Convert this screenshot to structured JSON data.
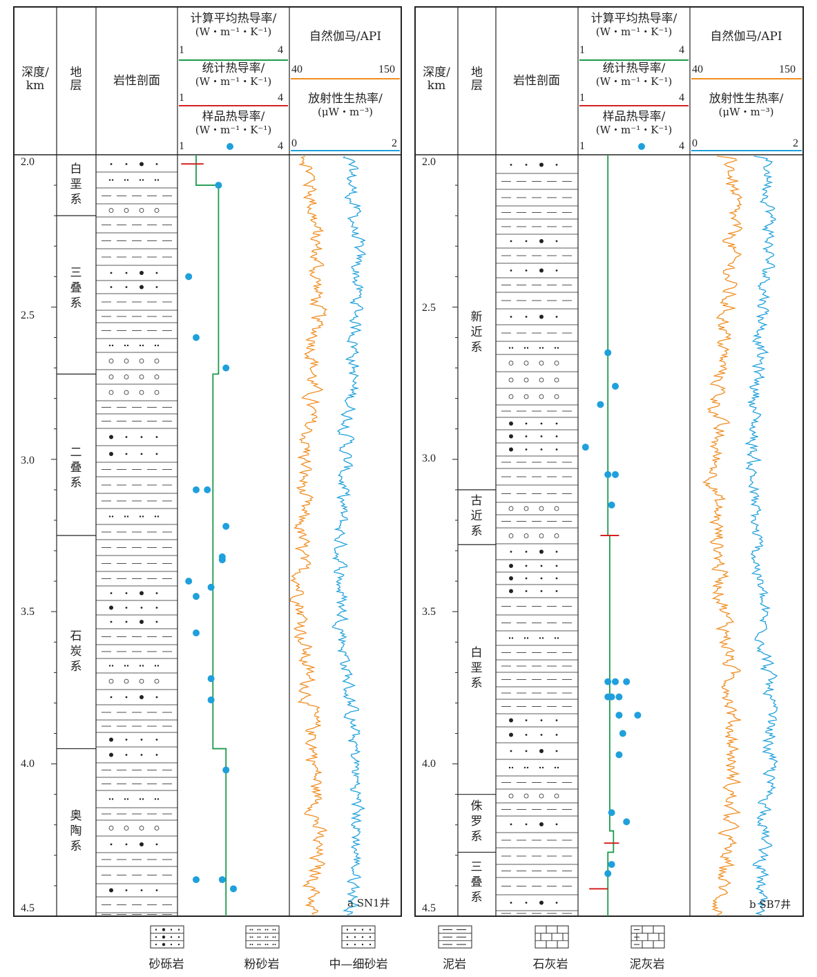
{
  "headers": {
    "depth": "深度/",
    "depth_unit": "km",
    "strata": "地\n层",
    "lithology": "岩性剖面",
    "calc_k": "计算平均热导率/",
    "k_unit": "(W・m⁻¹・K⁻¹)",
    "stat_k": "统计热导率/",
    "sample_k": "样品热导率/",
    "k_min": "1",
    "k_max": "4",
    "gamma": "自然伽马/API",
    "gamma_min": "40",
    "gamma_max": "150",
    "heat": "放射性生热率/",
    "heat_unit": "(μW・m⁻³)",
    "heat_min": "0",
    "heat_max": "2"
  },
  "depth_ticks": [
    "2.0",
    "2.5",
    "3.0",
    "3.5",
    "4.0",
    "4.5"
  ],
  "colors": {
    "calc": "#1a9a4a",
    "stat": "#d42020",
    "sample": "#1fa0dc",
    "gamma": "#f08c1e",
    "heat": "#1fa0dc",
    "frame": "#222222"
  },
  "wells": [
    {
      "name": "a SN1井",
      "strata": [
        {
          "name": "白垩系",
          "top": 2.0,
          "bottom": 2.2
        },
        {
          "name": "三叠系",
          "top": 2.2,
          "bottom": 2.72
        },
        {
          "name": "二叠系",
          "top": 2.72,
          "bottom": 3.25
        },
        {
          "name": "石炭系",
          "top": 3.25,
          "bottom": 3.95
        },
        {
          "name": "奥陶系",
          "top": 3.95,
          "bottom": 4.5
        }
      ],
      "calc_k_steps": [
        [
          2.0,
          2.1,
          1.5
        ],
        [
          2.1,
          2.72,
          2.1
        ],
        [
          2.72,
          3.95,
          1.95
        ],
        [
          3.95,
          4.5,
          2.3
        ]
      ],
      "stat_k": [
        {
          "depth": 2.03,
          "from": 1.1,
          "to": 1.7
        }
      ],
      "sample_k": [
        [
          2.1,
          2.1
        ],
        [
          2.4,
          1.3
        ],
        [
          2.6,
          1.5
        ],
        [
          2.7,
          2.3
        ],
        [
          3.1,
          1.5
        ],
        [
          3.1,
          1.8
        ],
        [
          3.22,
          2.3
        ],
        [
          3.32,
          2.2
        ],
        [
          3.33,
          2.2
        ],
        [
          3.42,
          1.9
        ],
        [
          3.4,
          1.3
        ],
        [
          3.45,
          1.5
        ],
        [
          3.57,
          1.5
        ],
        [
          3.72,
          1.9
        ],
        [
          3.79,
          1.9
        ],
        [
          4.02,
          2.3
        ],
        [
          4.38,
          1.5
        ],
        [
          4.38,
          2.2
        ],
        [
          4.41,
          2.5
        ]
      ]
    },
    {
      "name": "b SB7井",
      "strata": [
        {
          "name": "新近系",
          "top": 2.0,
          "bottom": 3.1
        },
        {
          "name": "古近系",
          "top": 3.1,
          "bottom": 3.28
        },
        {
          "name": "白垩系",
          "top": 3.28,
          "bottom": 4.1
        },
        {
          "name": "侏罗系",
          "top": 4.1,
          "bottom": 4.29
        },
        {
          "name": "三叠系",
          "top": 4.29,
          "bottom": 4.5
        }
      ],
      "calc_k_steps": [
        [
          2.0,
          3.25,
          1.8
        ],
        [
          3.25,
          4.22,
          1.85
        ],
        [
          4.22,
          4.29,
          1.95
        ],
        [
          4.29,
          4.5,
          1.8
        ]
      ],
      "stat_k": [
        {
          "depth": 3.25,
          "from": 1.6,
          "to": 2.1
        },
        {
          "depth": 4.26,
          "from": 1.7,
          "to": 2.1
        },
        {
          "depth": 4.41,
          "from": 1.3,
          "to": 1.8
        }
      ],
      "sample_k": [
        [
          2.65,
          1.8
        ],
        [
          2.76,
          2.0
        ],
        [
          2.82,
          1.6
        ],
        [
          2.96,
          1.2
        ],
        [
          3.05,
          1.8
        ],
        [
          3.05,
          2.0
        ],
        [
          3.15,
          1.9
        ],
        [
          3.73,
          1.8
        ],
        [
          3.73,
          2.0
        ],
        [
          3.73,
          2.3
        ],
        [
          3.78,
          1.8
        ],
        [
          3.78,
          1.9
        ],
        [
          3.78,
          2.1
        ],
        [
          3.84,
          2.1
        ],
        [
          3.84,
          2.6
        ],
        [
          3.9,
          2.2
        ],
        [
          3.97,
          2.1
        ],
        [
          4.16,
          1.9
        ],
        [
          4.19,
          2.3
        ],
        [
          4.33,
          1.9
        ],
        [
          4.36,
          1.8
        ]
      ]
    }
  ],
  "legend": [
    {
      "label": "砂砾岩",
      "icon": "conglomerate-icon"
    },
    {
      "label": "粉砂岩",
      "icon": "siltstone-icon"
    },
    {
      "label": "中—细砂岩",
      "icon": "fine-sandstone-icon"
    },
    {
      "label": "泥岩",
      "icon": "mudstone-icon"
    },
    {
      "label": "石灰岩",
      "icon": "limestone-icon"
    },
    {
      "label": "泥灰岩",
      "icon": "marl-icon"
    }
  ]
}
